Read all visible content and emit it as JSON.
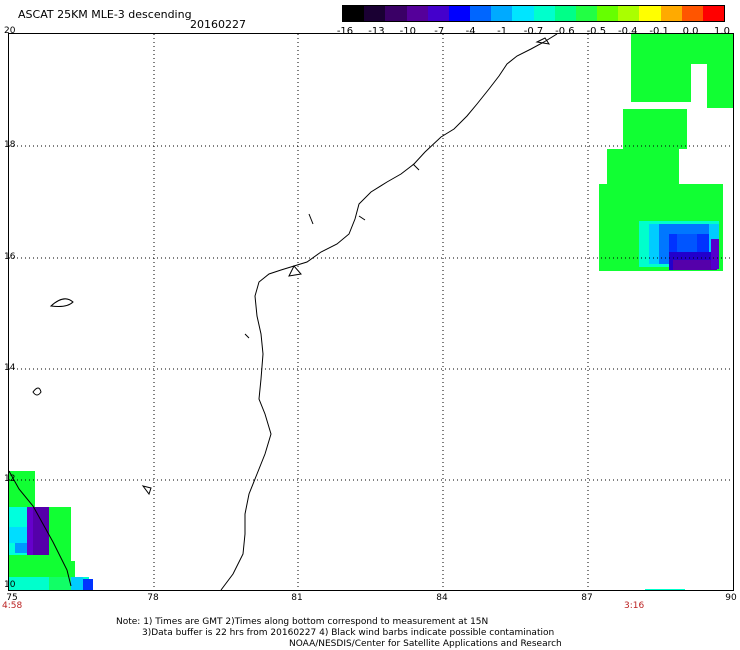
{
  "header": {
    "title": "ASCAT 25KM MLE-3 descending",
    "date": "20160227"
  },
  "colorbar": {
    "ticks": [
      "-16",
      "-13",
      "-10",
      "-7",
      "-4",
      "-1",
      "-0.7",
      "-0.6",
      "-0.5",
      "-0.4",
      "-0.1",
      "0.0",
      "1.0"
    ],
    "colors": [
      "#000000",
      "#1a0033",
      "#3a0066",
      "#55009a",
      "#4400cc",
      "#0000ff",
      "#0066ff",
      "#00aaff",
      "#00e5ff",
      "#00ffcc",
      "#00ff88",
      "#22ff44",
      "#66ff00",
      "#aaff00",
      "#ffff00",
      "#ffaa00",
      "#ff5500",
      "#ff0000"
    ]
  },
  "axes": {
    "x_ticks": [
      "75",
      "78",
      "81",
      "84",
      "87",
      "90"
    ],
    "y_ticks": [
      "20",
      "18",
      "16",
      "14",
      "12",
      "10"
    ],
    "xlim": [
      75,
      90
    ],
    "ylim": [
      10,
      20
    ],
    "grid": "dotted"
  },
  "pass_times": {
    "left": "4:58",
    "right": "3:16"
  },
  "notes": {
    "line1": "Note: 1) Times are GMT 2)Times along bottom correspond to measurement at 15N",
    "line2": "3)Data buffer is 22 hrs from 20160227 4) Black wind barbs indicate possible contamination",
    "line3": "NOAA/NESDIS/Center for Satellite Applications and Research"
  }
}
